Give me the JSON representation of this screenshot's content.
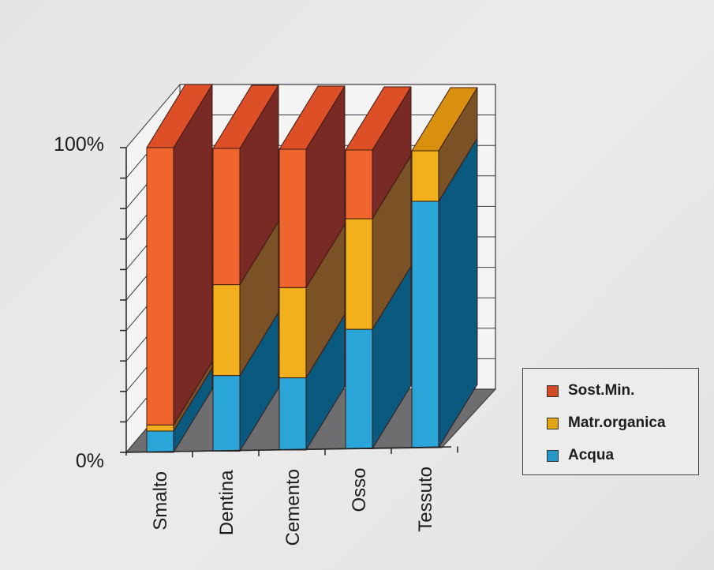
{
  "chart_data": {
    "type": "bar",
    "subtype": "stacked-100-percent-3d",
    "title": "",
    "xlabel": "",
    "ylabel": "",
    "ylim": [
      0,
      100
    ],
    "y_ticks": [
      "0%",
      "10%",
      "20%",
      "30%",
      "40%",
      "50%",
      "60%",
      "70%",
      "80%",
      "90%",
      "100%"
    ],
    "y_tick_labels_shown": [
      "0%",
      "100%"
    ],
    "grid": true,
    "legend_position": "right",
    "categories": [
      "Smalto",
      "Dentina",
      "Cemento",
      "Osso",
      "Tessuto"
    ],
    "series": [
      {
        "name": "Acqua",
        "color": "#2aa6d8",
        "values": [
          7,
          25,
          24,
          40,
          83
        ]
      },
      {
        "name": "Matr.organica",
        "color": "#f2b01c",
        "values": [
          2,
          30,
          30,
          37,
          17
        ]
      },
      {
        "name": "Sost.Min.",
        "color": "#f0652e",
        "values": [
          91,
          45,
          46,
          23,
          0
        ]
      }
    ]
  },
  "axis": {
    "y_top_label": "100%",
    "y_bottom_label": "0%"
  },
  "legend": {
    "items": [
      {
        "label": "Sost.Min.",
        "color": "#d24a24"
      },
      {
        "label": "Matr.organica",
        "color": "#e4a512"
      },
      {
        "label": "Acqua",
        "color": "#2499c8"
      }
    ]
  },
  "colors": {
    "sost_front": "#f0652e",
    "sost_side": "#7a2a24",
    "sost_top": "#dd4f26",
    "matr_front": "#f2b01c",
    "matr_side": "#7a5226",
    "matr_top": "#d8900e",
    "acqua_front": "#2aa6d8",
    "acqua_side": "#0a5a80",
    "floor": "#6e6e70",
    "wall": "#f4f4f4",
    "grid": "#3a3a3a"
  }
}
